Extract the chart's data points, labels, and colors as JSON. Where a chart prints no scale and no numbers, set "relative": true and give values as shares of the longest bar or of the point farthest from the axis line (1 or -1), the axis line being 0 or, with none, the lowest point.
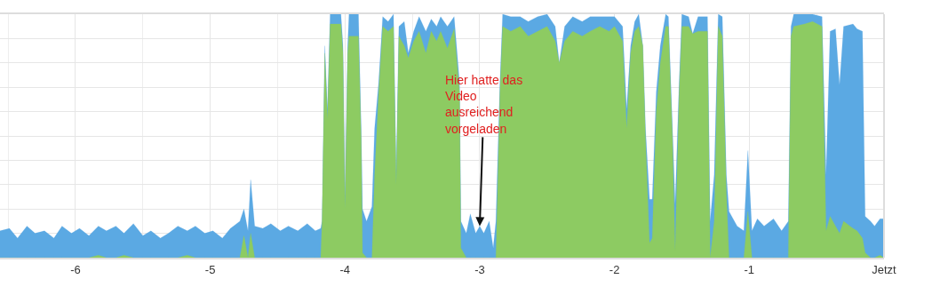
{
  "chart_data": {
    "type": "area",
    "relative": true,
    "x": [
      -6.56,
      -6.49,
      -6.43,
      -6.36,
      -6.3,
      -6.23,
      -6.16,
      -6.1,
      -6.03,
      -5.97,
      -5.9,
      -5.83,
      -5.77,
      -5.7,
      -5.64,
      -5.57,
      -5.5,
      -5.44,
      -5.37,
      -5.31,
      -5.24,
      -5.17,
      -5.11,
      -5.04,
      -4.98,
      -4.91,
      -4.85,
      -4.78,
      -4.75,
      -4.72,
      -4.7,
      -4.67,
      -4.61,
      -4.55,
      -4.48,
      -4.42,
      -4.35,
      -4.28,
      -4.22,
      -4.18,
      -4.17,
      -4.15,
      -4.13,
      -4.11,
      -4.03,
      -4.015,
      -4.0,
      -3.98,
      -3.97,
      -3.9,
      -3.88,
      -3.87,
      -3.84,
      -3.8,
      -3.78,
      -3.75,
      -3.72,
      -3.68,
      -3.64,
      -3.62,
      -3.6,
      -3.56,
      -3.53,
      -3.49,
      -3.45,
      -3.4,
      -3.36,
      -3.32,
      -3.29,
      -3.24,
      -3.19,
      -3.15,
      -3.14,
      -3.1,
      -3.07,
      -3.03,
      -3.0,
      -2.97,
      -2.93,
      -2.9,
      -2.88,
      -2.85,
      -2.83,
      -2.77,
      -2.7,
      -2.64,
      -2.57,
      -2.5,
      -2.44,
      -2.41,
      -2.37,
      -2.31,
      -2.24,
      -2.18,
      -2.11,
      -2.04,
      -2.0,
      -1.94,
      -1.91,
      -1.88,
      -1.85,
      -1.82,
      -1.79,
      -1.77,
      -1.74,
      -1.72,
      -1.69,
      -1.66,
      -1.62,
      -1.6,
      -1.57,
      -1.55,
      -1.52,
      -1.5,
      -1.45,
      -1.42,
      -1.38,
      -1.31,
      -1.29,
      -1.26,
      -1.23,
      -1.2,
      -1.17,
      -1.15,
      -1.09,
      -1.04,
      -1.01,
      -0.98,
      -0.94,
      -0.89,
      -0.82,
      -0.76,
      -0.71,
      -0.69,
      -0.67,
      -0.59,
      -0.53,
      -0.46,
      -0.43,
      -0.4,
      -0.36,
      -0.33,
      -0.3,
      -0.23,
      -0.2,
      -0.16,
      -0.14,
      -0.1,
      -0.07,
      -0.03,
      0
    ],
    "series": [
      {
        "color": "#5ba9e3",
        "values": [
          0.11,
          0.12,
          0.08,
          0.13,
          0.1,
          0.11,
          0.08,
          0.13,
          0.1,
          0.12,
          0.09,
          0.13,
          0.11,
          0.13,
          0.1,
          0.14,
          0.09,
          0.11,
          0.08,
          0.1,
          0.13,
          0.11,
          0.13,
          0.1,
          0.11,
          0.08,
          0.12,
          0.15,
          0.2,
          0.11,
          0.32,
          0.13,
          0.12,
          0.14,
          0.11,
          0.13,
          0.11,
          0.14,
          0.11,
          0.12,
          0.15,
          0.87,
          0.61,
          1,
          1,
          0.87,
          0.25,
          0.87,
          1,
          1,
          0.53,
          0.2,
          0.15,
          0.21,
          0.53,
          0.72,
          0.99,
          0.97,
          1,
          0.34,
          0.95,
          0.97,
          0.84,
          0.93,
          0.99,
          0.93,
          0.98,
          0.95,
          0.99,
          0.95,
          0.99,
          0.72,
          0.15,
          0.1,
          0.18,
          0.1,
          0.13,
          0.1,
          0.15,
          0.04,
          0.15,
          0.72,
          1,
          0.99,
          0.99,
          0.97,
          0.99,
          1,
          0.95,
          0.8,
          0.95,
          0.99,
          0.97,
          0.99,
          0.99,
          0.99,
          0.99,
          0.95,
          0.61,
          0.87,
          0.97,
          1,
          0.87,
          0.53,
          0.24,
          0.24,
          0.68,
          0.87,
          1,
          0.99,
          0.53,
          0.22,
          0.72,
          1,
          0.99,
          0.92,
          0.99,
          0.99,
          0.15,
          0.34,
          1,
          0.99,
          0.34,
          0.19,
          0.13,
          0.11,
          0.44,
          0.11,
          0.16,
          0.13,
          0.16,
          0.11,
          0.15,
          0.95,
          1,
          1,
          1,
          0.99,
          0.34,
          0.93,
          0.94,
          0.71,
          0.95,
          0.96,
          0.94,
          0.93,
          0.17,
          0.15,
          0.13,
          0.16,
          0.16
        ]
      },
      {
        "color": "#8dcb62",
        "values": [
          0,
          0,
          0,
          0,
          0,
          0,
          0,
          0,
          0,
          0,
          0,
          0.01,
          0,
          0,
          0.01,
          0,
          0,
          0,
          0,
          0,
          0,
          0.01,
          0,
          0,
          0,
          0,
          0,
          0,
          0.09,
          0,
          0.1,
          0,
          0,
          0,
          0,
          0,
          0,
          0,
          0,
          0,
          0.15,
          0.84,
          0.57,
          0.96,
          0.96,
          0.84,
          0.2,
          0.84,
          0.91,
          0.91,
          0.49,
          0.02,
          0,
          0,
          0.34,
          0.68,
          0.95,
          0.93,
          0.95,
          0.3,
          0.91,
          0.87,
          0.82,
          0.89,
          0.93,
          0.84,
          0.93,
          0.89,
          0.93,
          0.86,
          0.94,
          0.68,
          0.04,
          0,
          0,
          0,
          0,
          0,
          0,
          0,
          0,
          0.68,
          0.95,
          0.93,
          0.95,
          0.91,
          0.93,
          0.95,
          0.89,
          0.8,
          0.89,
          0.93,
          0.91,
          0.93,
          0.95,
          0.93,
          0.95,
          0.89,
          0.53,
          0.84,
          0.93,
          0.95,
          0.87,
          0.49,
          0.06,
          0.08,
          0.6,
          0.8,
          0.95,
          0.95,
          0.49,
          0.03,
          0.68,
          0.95,
          0.95,
          0.92,
          0.93,
          0.93,
          0,
          0.15,
          0.95,
          0.91,
          0.27,
          0,
          0,
          0,
          0.19,
          0,
          0,
          0,
          0,
          0,
          0,
          0.91,
          0.95,
          0.96,
          0.97,
          0.95,
          0.11,
          0.17,
          0.13,
          0.1,
          0.15,
          0.12,
          0.11,
          0.08,
          0.02,
          0,
          0,
          0.01,
          0
        ]
      }
    ],
    "xlim": [
      -6.56,
      0
    ],
    "xticks": [
      -6,
      -5,
      -4,
      -3,
      -2,
      -1,
      {
        "value": 0,
        "label": "Jetzt"
      }
    ],
    "tick_labels": "x",
    "grid": true,
    "annotations": [
      {
        "text": "Hier hatte das\nVideo\nausreichend\nvorgeladen",
        "x": -3.0,
        "y": 0.13
      }
    ]
  }
}
